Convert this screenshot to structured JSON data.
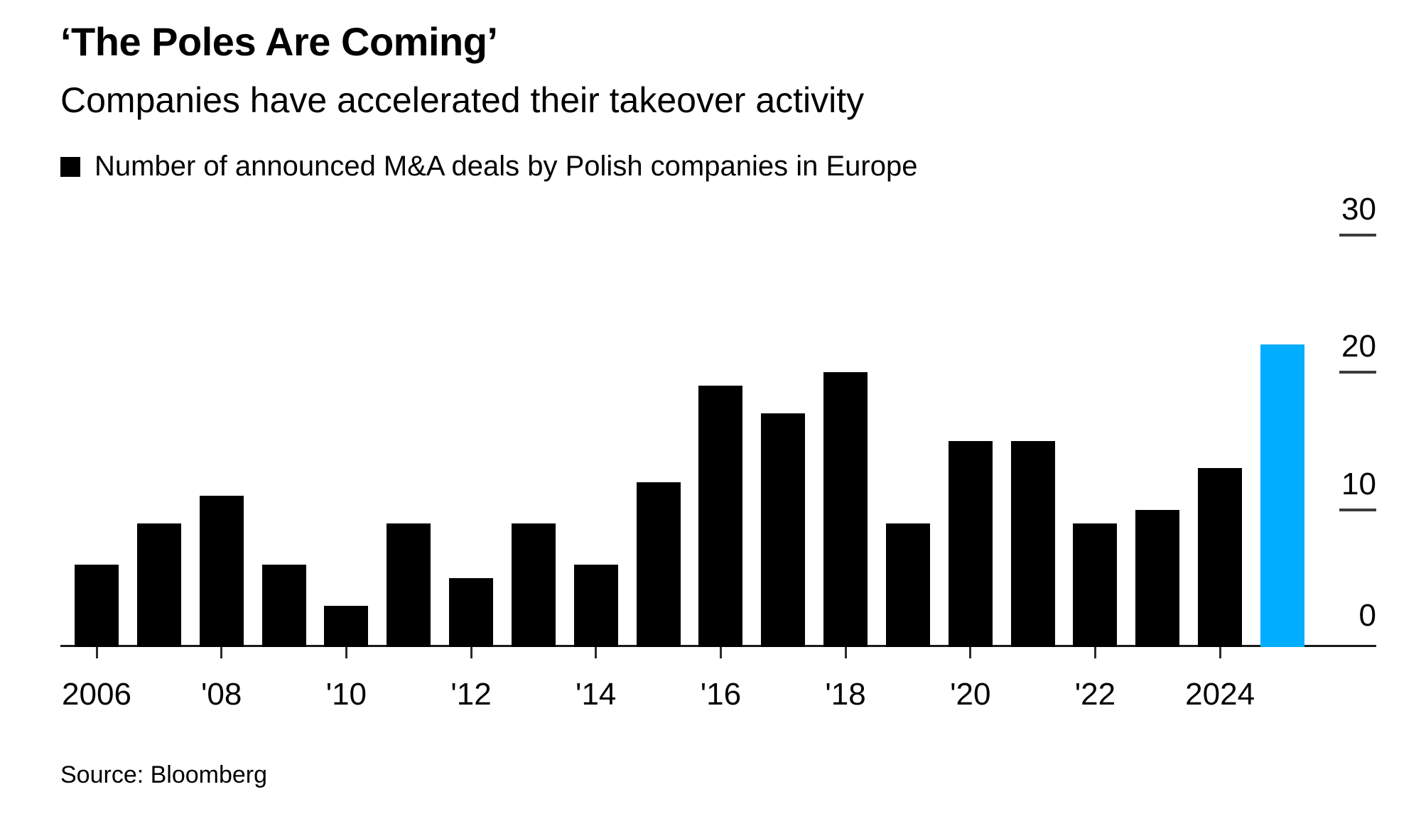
{
  "header": {
    "title": "‘The Poles Are Coming’",
    "subtitle": "Companies have accelerated their takeover activity"
  },
  "legend": {
    "label": "Number of announced M&A deals by Polish companies in Europe",
    "swatch_color": "#000000"
  },
  "source": "Source: Bloomberg",
  "colors": {
    "bar": "#000000",
    "highlight": "#00adff",
    "axis": "#1a1a1a",
    "tick": "#2b2b2b",
    "text": "#000000",
    "background": "#ffffff"
  },
  "chart_data": {
    "type": "bar",
    "title": "‘The Poles Are Coming’",
    "subtitle": "Companies have accelerated their takeover activity",
    "series_label": "Number of announced M&A deals by Polish companies in Europe",
    "categories": [
      "2006",
      "2007",
      "2008",
      "2009",
      "2010",
      "2011",
      "2012",
      "2013",
      "2014",
      "2015",
      "2016",
      "2017",
      "2018",
      "2019",
      "2020",
      "2021",
      "2022",
      "2023",
      "2024",
      "2025"
    ],
    "values": [
      6,
      9,
      11,
      6,
      3,
      9,
      5,
      9,
      6,
      12,
      19,
      17,
      20,
      9,
      15,
      15,
      9,
      10,
      13,
      22
    ],
    "highlight_category": "2025",
    "highlight_color": "#00adff",
    "xlabel": "",
    "ylabel": "",
    "ylim": [
      0,
      30
    ],
    "y_ticks": [
      0,
      10,
      20,
      30
    ],
    "y_axis_side": "right",
    "grid": false,
    "legend_position": "top-left",
    "x_ticks": [
      {
        "category": "2006",
        "label": "2006"
      },
      {
        "category": "2008",
        "label": "'08"
      },
      {
        "category": "2010",
        "label": "'10"
      },
      {
        "category": "2012",
        "label": "'12"
      },
      {
        "category": "2014",
        "label": "'14"
      },
      {
        "category": "2016",
        "label": "'16"
      },
      {
        "category": "2018",
        "label": "'18"
      },
      {
        "category": "2020",
        "label": "'20"
      },
      {
        "category": "2022",
        "label": "'22"
      },
      {
        "category": "2024",
        "label": "2024"
      }
    ]
  }
}
